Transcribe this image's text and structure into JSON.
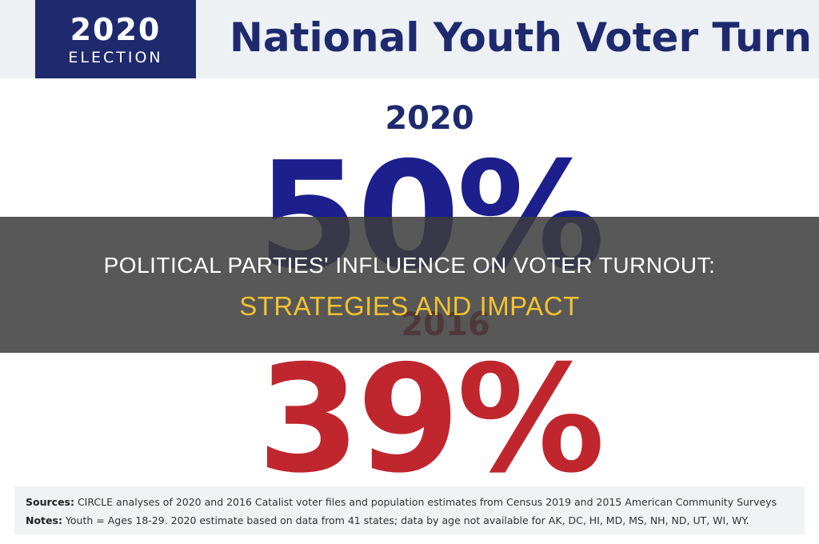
{
  "graphic": {
    "badge": {
      "year": "2020",
      "label": "ELECTION"
    },
    "headline": "National Youth Voter Turn",
    "results": [
      {
        "year": "2020",
        "turnout": "50%"
      },
      {
        "year": "2016",
        "turnout": "39%"
      }
    ],
    "footer": {
      "sources_label": "Sources:",
      "sources_text": " CIRCLE analyses of 2020 and 2016 Catalist voter files and population estimates from Census 2019 and 2015 American Community Surveys",
      "notes_label": "Notes:",
      "notes_text": " Youth = Ages 18-29. 2020 estimate based on data from 41 states; data by age not available for AK, DC, HI, MD, MS, NH, ND, UT, WI, WY."
    },
    "colors": {
      "navy": "#1f2a6e",
      "red": "#c0262e"
    }
  },
  "overlay": {
    "title": "POLITICAL PARTIES' INFLUENCE ON VOTER TURNOUT:",
    "subtitle": "STRATEGIES AND IMPACT",
    "subtitle_color": "#f2c230"
  }
}
